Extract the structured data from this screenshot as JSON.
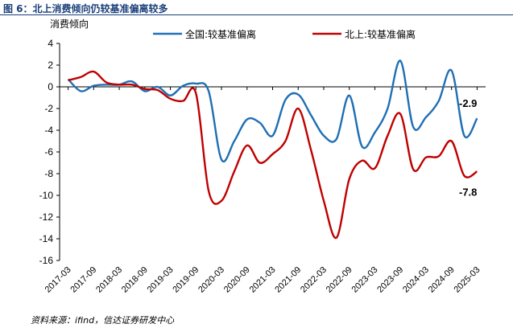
{
  "figure_title": "图 6：北上消费倾向仍较基准偏离较多",
  "source": "资料来源：ifind，信达证券研发中心",
  "chart_data": {
    "type": "line",
    "title": "",
    "ylabel": "消费倾向",
    "xlabel": "",
    "ylim": [
      -16,
      4
    ],
    "yticks": [
      4,
      2,
      0,
      -2,
      -4,
      -6,
      -8,
      -10,
      -12,
      -14,
      -16
    ],
    "xlim": [
      "2017-01",
      "2025-05"
    ],
    "xticks": [
      "2017-03",
      "2017-09",
      "2018-03",
      "2018-09",
      "2019-03",
      "2019-09",
      "2020-03",
      "2020-09",
      "2021-03",
      "2021-09",
      "2022-03",
      "2022-09",
      "2023-03",
      "2023-09",
      "2024-03",
      "2024-09",
      "2025-03"
    ],
    "legend_position": "top",
    "grid": false,
    "series": [
      {
        "name": "全国:较基准偏离",
        "color": "#1f6fb4",
        "end_label": "-2.9",
        "x": [
          "2017-03",
          "2017-06",
          "2017-09",
          "2017-12",
          "2018-03",
          "2018-06",
          "2018-09",
          "2018-12",
          "2019-03",
          "2019-06",
          "2019-09",
          "2019-12",
          "2020-03",
          "2020-06",
          "2020-09",
          "2020-12",
          "2021-03",
          "2021-06",
          "2021-09",
          "2021-12",
          "2022-03",
          "2022-06",
          "2022-09",
          "2022-12",
          "2023-03",
          "2023-06",
          "2023-09",
          "2023-12",
          "2024-03",
          "2024-06",
          "2024-09",
          "2024-12",
          "2025-03"
        ],
        "values": [
          0.7,
          -0.4,
          0.1,
          0.2,
          0.2,
          0.5,
          -0.4,
          0.0,
          -0.8,
          0.1,
          0.3,
          -0.4,
          -6.7,
          -5.0,
          -3.0,
          -3.3,
          -4.5,
          -1.2,
          -0.7,
          -2.6,
          -4.5,
          -4.8,
          -0.8,
          -5.5,
          -4.2,
          -2.0,
          2.4,
          -3.7,
          -2.8,
          -1.3,
          1.5,
          -4.5,
          -2.9
        ]
      },
      {
        "name": "北上:较基准偏离",
        "color": "#c00000",
        "end_label": "-7.8",
        "x": [
          "2017-03",
          "2017-06",
          "2017-09",
          "2017-12",
          "2018-03",
          "2018-06",
          "2018-09",
          "2018-12",
          "2019-03",
          "2019-06",
          "2019-09",
          "2019-12",
          "2020-03",
          "2020-06",
          "2020-09",
          "2020-12",
          "2021-03",
          "2021-06",
          "2021-09",
          "2021-12",
          "2022-03",
          "2022-06",
          "2022-09",
          "2022-12",
          "2023-03",
          "2023-06",
          "2023-09",
          "2023-12",
          "2024-03",
          "2024-06",
          "2024-09",
          "2024-12",
          "2025-03"
        ],
        "values": [
          0.6,
          0.9,
          1.4,
          0.4,
          0.2,
          0.2,
          -0.2,
          -0.3,
          -1.1,
          -1.3,
          -0.6,
          -9.6,
          -10.5,
          -7.8,
          -5.4,
          -7.0,
          -6.2,
          -5.0,
          -2.0,
          -5.8,
          -10.5,
          -13.9,
          -8.5,
          -6.8,
          -7.5,
          -4.5,
          -2.5,
          -7.6,
          -6.5,
          -6.4,
          -5.0,
          -8.2,
          -7.8
        ]
      }
    ]
  }
}
